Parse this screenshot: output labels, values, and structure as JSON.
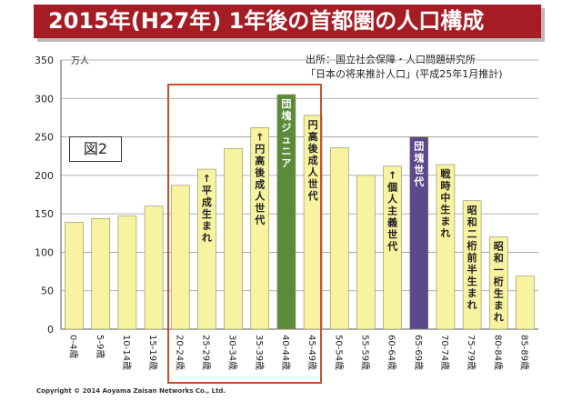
{
  "title": "2015年(H27年)  1年後の首都圏の人口構成",
  "unit_label": "万人",
  "source_line1": "出所：国立社会保障・人口問題研究所",
  "source_line2": "「日本の将来推計人口」(平成25年1月推計)",
  "figure_label": "図2",
  "copyright": "Copyright © 2014 Aoyama Zaisan Networks Co., Ltd.",
  "colors": {
    "title_bg": "#a61c24",
    "bar_default": "#f7f3a0",
    "bar_junior": "#5b8a3a",
    "bar_dankai": "#5b4a8a",
    "highlight_box": "#c8502a"
  },
  "chart_data": {
    "type": "bar",
    "title": "2015年(H27年)  1年後の首都圏の人口構成",
    "xlabel": "",
    "ylabel": "万人",
    "ylim": [
      0,
      350
    ],
    "yticks": [
      0,
      50,
      100,
      150,
      200,
      250,
      300,
      350
    ],
    "categories": [
      "0-4歳",
      "5-9歳",
      "10-14歳",
      "15-19歳",
      "20-24歳",
      "25-29歳",
      "30-34歳",
      "35-39歳",
      "40-44歳",
      "45-49歳",
      "50-54歳",
      "55-59歳",
      "60-64歳",
      "65-69歳",
      "70-74歳",
      "75-79歳",
      "80-84歳",
      "85-89歳"
    ],
    "values": [
      139,
      144,
      147,
      160,
      187,
      208,
      235,
      262,
      305,
      278,
      236,
      200,
      212,
      250,
      214,
      167,
      120,
      69
    ],
    "bar_styles": [
      "default",
      "default",
      "default",
      "default",
      "default",
      "default",
      "default",
      "default",
      "junior",
      "default",
      "default",
      "default",
      "default",
      "dankai",
      "default",
      "default",
      "default",
      "default"
    ],
    "bar_annotations": [
      "",
      "",
      "",
      "",
      "",
      "←平成生まれ",
      "",
      "←円高後成人世代",
      "団塊ジュニア",
      "円高後成人世代",
      "",
      "",
      "←個人主義世代",
      "団塊世代",
      "戦時中生まれ",
      "昭和二桁前半生まれ",
      "昭和一桁生まれ",
      ""
    ]
  }
}
